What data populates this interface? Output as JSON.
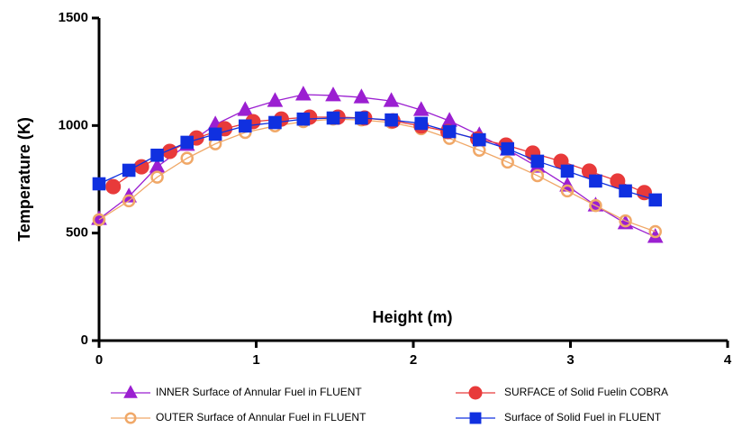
{
  "chart_data": {
    "type": "line",
    "xlabel": "Height (m)",
    "ylabel": "Temperature (K)",
    "xlim": [
      0,
      4
    ],
    "xticks": [
      0,
      1,
      2,
      3,
      4
    ],
    "ylim": [
      0,
      1500
    ],
    "yticks": [
      0,
      500,
      1000,
      1500
    ],
    "series": [
      {
        "name": "INNER Surface of Annular Fuel in FLUENT",
        "color": "#9b1fd1",
        "marker": "triangle",
        "filled": true,
        "x": [
          0,
          0.19,
          0.37,
          0.56,
          0.74,
          0.93,
          1.12,
          1.3,
          1.49,
          1.67,
          1.86,
          2.05,
          2.23,
          2.42,
          2.6,
          2.79,
          2.98,
          3.16,
          3.35,
          3.54
        ],
        "values": [
          565,
          670,
          808,
          910,
          1005,
          1072,
          1114,
          1144,
          1140,
          1131,
          1114,
          1072,
          1022,
          955,
          888,
          808,
          720,
          628,
          545,
          482
        ]
      },
      {
        "name": "OUTER Surface of Annular Fuel in FLUENT",
        "color": "#f0a868",
        "marker": "circle",
        "filled": false,
        "x": [
          0,
          0.19,
          0.37,
          0.56,
          0.74,
          0.93,
          1.12,
          1.3,
          1.49,
          1.67,
          1.86,
          2.05,
          2.23,
          2.42,
          2.6,
          2.79,
          2.98,
          3.16,
          3.35,
          3.54
        ],
        "values": [
          562,
          650,
          760,
          848,
          915,
          968,
          998,
          1018,
          1030,
          1026,
          1014,
          985,
          940,
          885,
          830,
          767,
          696,
          628,
          557,
          507
        ]
      },
      {
        "name": "SURFACE of Solid Fuelin COBRA",
        "color": "#e83a3a",
        "marker": "circle",
        "filled": true,
        "x": [
          0.09,
          0.27,
          0.45,
          0.62,
          0.8,
          0.98,
          1.16,
          1.34,
          1.52,
          1.69,
          1.87,
          2.05,
          2.22,
          2.41,
          2.59,
          2.76,
          2.94,
          3.12,
          3.3,
          3.47
        ],
        "values": [
          716,
          808,
          880,
          942,
          985,
          1018,
          1030,
          1039,
          1039,
          1035,
          1022,
          998,
          972,
          938,
          909,
          872,
          834,
          788,
          742,
          688
        ]
      },
      {
        "name": "Surface of Solid Fuel in FLUENT",
        "color": "#1030e0",
        "marker": "square",
        "filled": true,
        "x": [
          0,
          0.19,
          0.37,
          0.56,
          0.74,
          0.93,
          1.12,
          1.3,
          1.49,
          1.67,
          1.86,
          2.05,
          2.23,
          2.42,
          2.6,
          2.79,
          2.98,
          3.16,
          3.35,
          3.54
        ],
        "values": [
          729,
          792,
          862,
          922,
          960,
          998,
          1014,
          1030,
          1035,
          1035,
          1026,
          1010,
          972,
          934,
          892,
          834,
          788,
          742,
          696,
          654
        ]
      }
    ]
  }
}
